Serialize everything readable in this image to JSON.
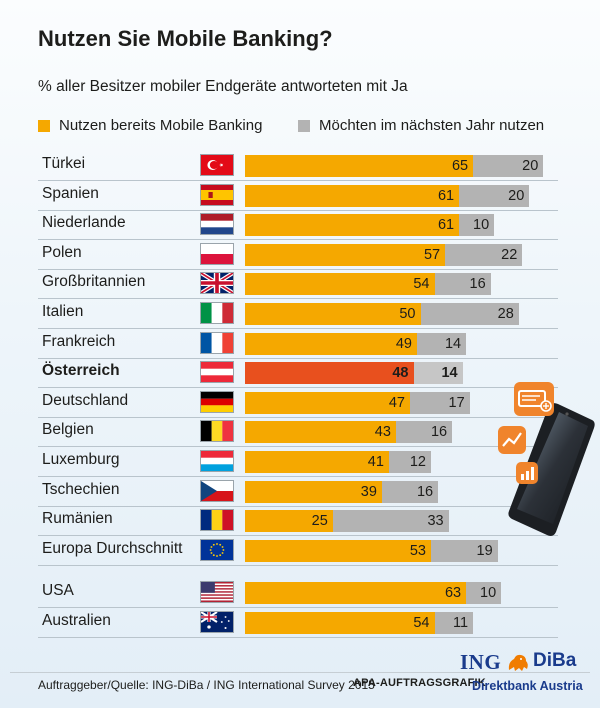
{
  "title": "Nutzen Sie Mobile Banking?",
  "subtitle": "% aller Besitzer mobiler Endgeräte antworteten mit Ja",
  "colors": {
    "orange": "#f5a800",
    "gray": "#b3b3b3",
    "highlight_orange": "#e8501e",
    "highlight_gray": "#c6c6c6"
  },
  "chart_data": {
    "type": "bar",
    "orientation": "horizontal",
    "stacked": true,
    "categories": [
      "Türkei",
      "Spanien",
      "Niederlande",
      "Polen",
      "Großbritannien",
      "Italien",
      "Frankreich",
      "Österreich",
      "Deutschland",
      "Belgien",
      "Luxemburg",
      "Tschechien",
      "Rumänien",
      "Europa Durchschnitt",
      "USA",
      "Australien"
    ],
    "highlight": "Österreich",
    "series": [
      {
        "name": "Nutzen bereits Mobile Banking",
        "color": "#f5a800",
        "values": [
          65,
          61,
          61,
          57,
          54,
          50,
          49,
          48,
          47,
          43,
          41,
          39,
          25,
          53,
          63,
          54
        ]
      },
      {
        "name": "Möchten im nächsten Jahr nutzen",
        "color": "#b3b3b3",
        "values": [
          20,
          20,
          10,
          22,
          16,
          28,
          14,
          14,
          17,
          16,
          12,
          16,
          33,
          19,
          10,
          11
        ]
      }
    ],
    "flags": [
      "flag-turkey",
      "flag-spain",
      "flag-netherlands",
      "flag-poland",
      "flag-uk",
      "flag-italy",
      "flag-france",
      "flag-austria",
      "flag-germany",
      "flag-belgium",
      "flag-luxembourg",
      "flag-czech",
      "flag-romania",
      "flag-eu",
      "flag-usa",
      "flag-australia"
    ]
  },
  "footer": {
    "source": "Auftraggeber/Quelle: ING-DiBa / ING International Survey 2015",
    "credit": "APA-AUFTRAGSGRAFIK",
    "logo_ing": "ING",
    "logo_diba": "DiBa",
    "logo_sub": "Direktbank Austria"
  },
  "icons": [
    "wallet-card-icon",
    "trend-chart-icon",
    "bar-chart-icon",
    "smartphone-icon",
    "lion-logo-icon"
  ]
}
